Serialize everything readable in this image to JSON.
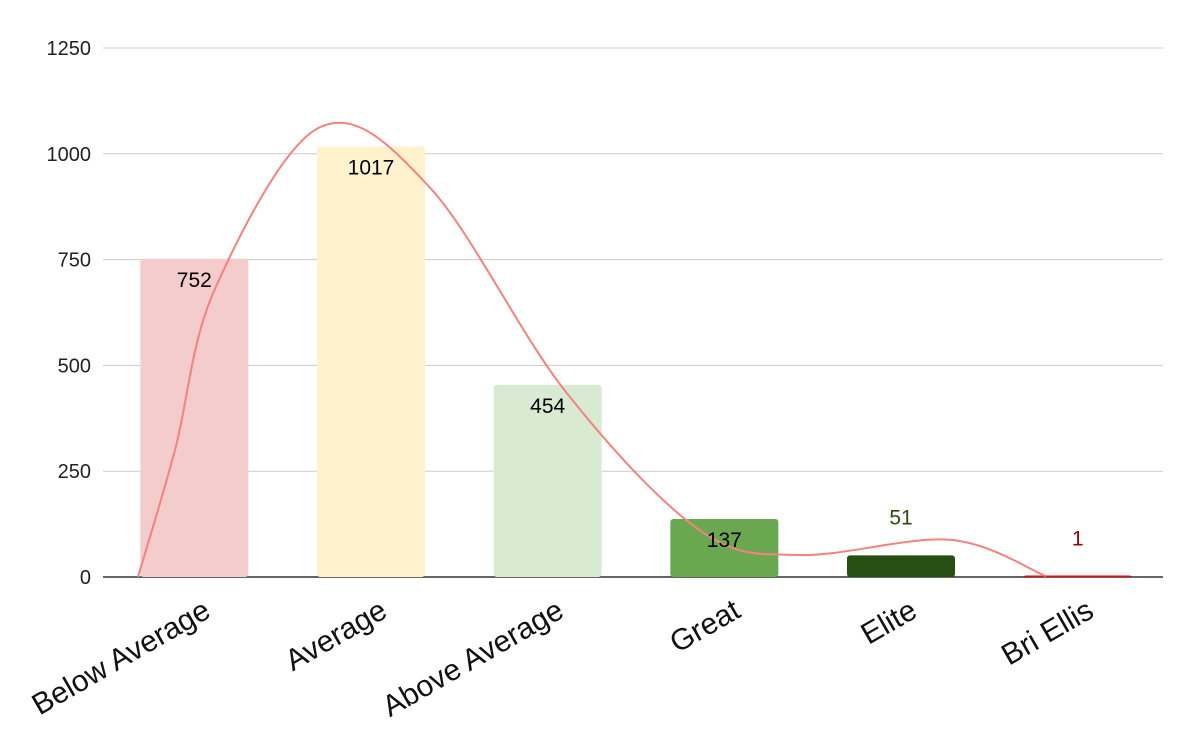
{
  "chart_data": {
    "type": "bar",
    "title": "",
    "xlabel": "",
    "ylabel": "",
    "ylim": [
      0,
      1250
    ],
    "yticks": [
      0,
      250,
      500,
      750,
      1000,
      1250
    ],
    "grid": true,
    "categories": [
      "Below Average",
      "Average",
      "Above Average",
      "Great",
      "Elite",
      "Bri Ellis"
    ],
    "values": [
      752,
      1017,
      454,
      137,
      51,
      1
    ],
    "data_labels": [
      "752",
      "1017",
      "454",
      "137",
      "51",
      "1"
    ],
    "bar_colors": [
      "#f4cccc",
      "#fff2cc",
      "#d9ead3",
      "#6aa84f",
      "#274e13",
      "#ff0000"
    ],
    "label_colors": [
      "#000000",
      "#000000",
      "#000000",
      "#000000",
      "#274e13",
      "#990000"
    ],
    "trendline": {
      "type": "smooth",
      "color": "#f4827e"
    }
  }
}
